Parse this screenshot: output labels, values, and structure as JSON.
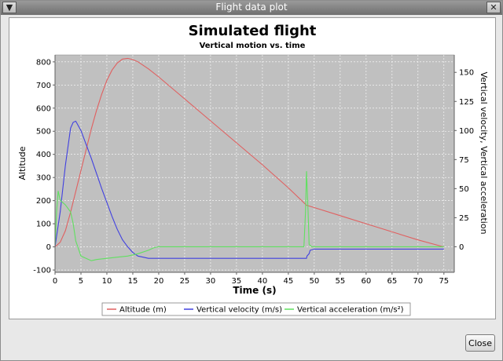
{
  "window": {
    "title": "Flight data plot",
    "menu_icon": "chevron-down-icon",
    "close_icon": "close-icon",
    "close_button_label": "Close"
  },
  "chart_data": {
    "type": "line",
    "title": "Simulated flight",
    "subtitle": "Vertical motion vs. time",
    "xlabel": "Time (s)",
    "ylabel_left": "Altitude",
    "ylabel_right": "Vertical velocity, Vertical acceleration",
    "xlim": [
      0,
      77
    ],
    "ylim_left": [
      -110,
      830
    ],
    "ylim_right": [
      -22,
      165
    ],
    "x_ticks": [
      0,
      5,
      10,
      15,
      20,
      25,
      30,
      35,
      40,
      45,
      50,
      55,
      60,
      65,
      70,
      75
    ],
    "y_left_ticks": [
      -100,
      0,
      100,
      200,
      300,
      400,
      500,
      600,
      700,
      800
    ],
    "y_right_ticks": [
      0,
      25,
      50,
      75,
      100,
      125,
      150
    ],
    "grid": true,
    "legend_position": "bottom",
    "series": [
      {
        "name": "Altitude (m)",
        "axis": "left",
        "color": "#e06060",
        "x": [
          0,
          1,
          2,
          3,
          4,
          5,
          6,
          7,
          8,
          9,
          10,
          11,
          12,
          13,
          14,
          15,
          16,
          18,
          20,
          25,
          30,
          35,
          40,
          45,
          48.5,
          50,
          55,
          60,
          65,
          70,
          75
        ],
        "y": [
          0,
          20,
          70,
          150,
          240,
          330,
          420,
          510,
          590,
          660,
          720,
          765,
          795,
          812,
          815,
          810,
          800,
          770,
          735,
          640,
          545,
          450,
          355,
          255,
          180,
          170,
          135,
          100,
          65,
          30,
          0
        ]
      },
      {
        "name": "Vertical velocity (m/s)",
        "axis": "right",
        "color": "#4040e0",
        "x": [
          0,
          1,
          2,
          3,
          3.5,
          4,
          5,
          6,
          7,
          8,
          9,
          10,
          11,
          12,
          13,
          14,
          15,
          16,
          17,
          18,
          20,
          25,
          30,
          35,
          40,
          45,
          48.5,
          48.6,
          49,
          49.2,
          50,
          55,
          60,
          65,
          70,
          75
        ],
        "y": [
          0,
          30,
          70,
          102,
          107,
          108,
          100,
          88,
          76,
          63,
          50,
          38,
          26,
          15,
          6,
          0,
          -5,
          -8,
          -9,
          -10,
          -10,
          -10,
          -10,
          -10,
          -10,
          -10,
          -10,
          -8,
          -6,
          -3,
          -2,
          -2,
          -2,
          -2,
          -2,
          -2
        ]
      },
      {
        "name": "Vertical acceleration (m/s²)",
        "axis": "right",
        "color": "#60e060",
        "x": [
          0,
          0.3,
          0.6,
          1,
          2,
          3,
          3.5,
          4,
          5,
          6,
          7,
          8,
          10,
          12,
          14,
          16,
          18,
          19,
          20,
          25,
          30,
          35,
          40,
          45,
          48,
          48.3,
          48.5,
          48.8,
          49,
          49.5,
          50,
          55,
          60,
          65,
          70,
          75
        ],
        "y": [
          0,
          30,
          48,
          40,
          36,
          30,
          20,
          5,
          -8,
          -10,
          -12,
          -11,
          -10,
          -9,
          -8,
          -6,
          -3,
          -1,
          0,
          0,
          0,
          0,
          0,
          0,
          0,
          30,
          65,
          30,
          2,
          0,
          0,
          0,
          0,
          0,
          0,
          0
        ]
      }
    ]
  }
}
